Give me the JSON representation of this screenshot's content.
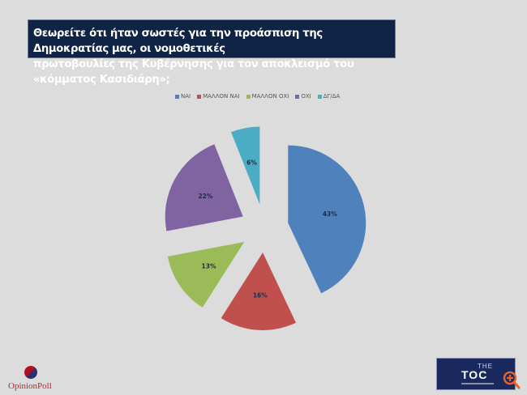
{
  "title": {
    "line1": "Θεωρείτε ότι ήταν σωστές για την προάσπιση της Δημοκρατίας μας,  οι νομοθετικές",
    "line2": "πρωτοβουλίες της Κυβέρνησης για τον αποκλεισμό του «κόμματος Κασιδιάρη»;"
  },
  "legend": [
    {
      "label": "ΝΑΙ",
      "color": "#4f81bd"
    },
    {
      "label": "ΜΑΛΛΟΝ ΝΑΙ",
      "color": "#c0504d"
    },
    {
      "label": "ΜΑΛΛΟΝ ΟΧΙ",
      "color": "#9bbb59"
    },
    {
      "label": "ΟΧΙ",
      "color": "#8064a2"
    },
    {
      "label": "ΔΓ/ΔΑ",
      "color": "#4bacc6"
    }
  ],
  "chart_data": {
    "type": "pie",
    "title": "Θεωρείτε ότι ήταν σωστές για την προάσπιση της Δημοκρατίας μας, οι νομοθετικές πρωτοβουλίες της Κυβέρνησης για τον αποκλεισμό του «κόμματος Κασιδιάρη»;",
    "categories": [
      "ΝΑΙ",
      "ΜΑΛΛΟΝ ΝΑΙ",
      "ΜΑΛΛΟΝ ΟΧΙ",
      "ΟΧΙ",
      "ΔΓ/ΔΑ"
    ],
    "values": [
      43,
      16,
      13,
      22,
      6
    ],
    "labels": [
      "43%",
      "16%",
      "13%",
      "22%",
      "6%"
    ],
    "colors": [
      "#4f81bd",
      "#c0504d",
      "#9bbb59",
      "#8064a2",
      "#4bacc6"
    ],
    "exploded": true,
    "legend_position": "top"
  },
  "logos": {
    "left": "OpinionPoll",
    "right_top": "THE",
    "right_main": "TOC"
  }
}
